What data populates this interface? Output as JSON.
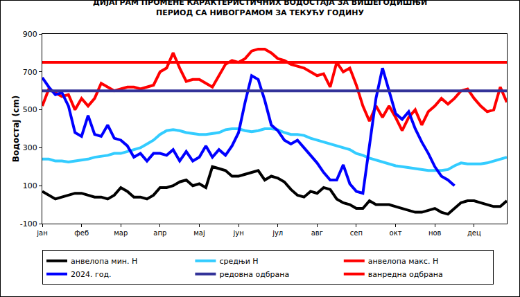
{
  "chart_data": {
    "type": "line",
    "title": "ДИЈАГРАМ ПРОМЕНЕ КАРАКТЕРИСТИЧНИХ ВОДОСТАЈА ЗА ВИШЕГОДИШЊИ\nПЕРИОД СА НИВОГРАМОМ ЗА ТЕКУЋУ ГОДИНУ",
    "y_label": "Водостај (cm)",
    "categories": [
      "јан",
      null,
      null,
      null,
      null,
      null,
      "феб",
      null,
      null,
      null,
      null,
      null,
      "мар",
      null,
      null,
      null,
      null,
      null,
      "апр",
      null,
      null,
      null,
      null,
      null,
      "мај",
      null,
      null,
      null,
      null,
      null,
      "јун",
      null,
      null,
      null,
      null,
      null,
      "јул",
      null,
      null,
      null,
      null,
      null,
      "авг",
      null,
      null,
      null,
      null,
      null,
      "сеп",
      null,
      null,
      null,
      null,
      null,
      "окт",
      null,
      null,
      null,
      null,
      null,
      "нов",
      null,
      null,
      null,
      null,
      null,
      "дец",
      null,
      null,
      null,
      null,
      null
    ],
    "series": [
      {
        "name": "анвелопа мин. Н",
        "color": "#000000",
        "values": [
          70,
          50,
          30,
          40,
          50,
          60,
          60,
          50,
          40,
          40,
          30,
          50,
          90,
          70,
          40,
          40,
          30,
          50,
          90,
          90,
          100,
          120,
          130,
          100,
          110,
          90,
          200,
          190,
          180,
          150,
          150,
          160,
          170,
          180,
          130,
          150,
          140,
          120,
          80,
          50,
          40,
          70,
          60,
          90,
          80,
          30,
          10,
          0,
          -20,
          -20,
          20,
          0,
          0,
          0,
          -10,
          -20,
          -30,
          -40,
          -40,
          -30,
          -20,
          -40,
          -50,
          -20,
          10,
          20,
          20,
          10,
          0,
          -10,
          -10,
          20
        ]
      },
      {
        "name": "средњи Н",
        "color": "#33ccff",
        "values": [
          240,
          240,
          230,
          230,
          225,
          230,
          235,
          240,
          250,
          255,
          260,
          270,
          270,
          280,
          290,
          300,
          320,
          340,
          370,
          390,
          395,
          390,
          380,
          375,
          370,
          370,
          375,
          380,
          395,
          400,
          400,
          390,
          385,
          390,
          400,
          400,
          395,
          380,
          370,
          370,
          365,
          350,
          340,
          330,
          320,
          310,
          300,
          290,
          270,
          260,
          245,
          235,
          225,
          215,
          205,
          200,
          195,
          190,
          185,
          180,
          180,
          180,
          185,
          205,
          220,
          215,
          215,
          215,
          220,
          230,
          240,
          250
        ]
      },
      {
        "name": "анвелопа макс. Н",
        "color": "#ff0000",
        "values": [
          520,
          610,
          590,
          570,
          580,
          500,
          560,
          520,
          560,
          640,
          620,
          600,
          610,
          620,
          620,
          610,
          620,
          630,
          700,
          720,
          800,
          720,
          650,
          660,
          660,
          640,
          620,
          680,
          740,
          760,
          750,
          770,
          810,
          820,
          820,
          800,
          770,
          760,
          740,
          730,
          720,
          700,
          680,
          690,
          620,
          750,
          700,
          720,
          630,
          520,
          440,
          520,
          460,
          520,
          460,
          390,
          460,
          500,
          420,
          490,
          520,
          560,
          530,
          560,
          600,
          610,
          560,
          520,
          490,
          500,
          620,
          540
        ]
      },
      {
        "name": "2024. год.",
        "color": "#0000ff",
        "values": [
          670,
          620,
          580,
          590,
          520,
          380,
          360,
          470,
          370,
          360,
          420,
          350,
          340,
          310,
          250,
          270,
          230,
          270,
          270,
          260,
          290,
          230,
          280,
          230,
          250,
          310,
          250,
          290,
          260,
          310,
          380,
          540,
          680,
          660,
          550,
          420,
          390,
          340,
          320,
          340,
          300,
          260,
          220,
          170,
          130,
          130,
          210,
          110,
          70,
          60,
          300,
          560,
          720,
          600,
          480,
          450,
          490,
          400,
          330,
          270,
          200,
          150,
          130,
          100,
          null,
          null,
          null,
          null,
          null,
          null,
          null,
          null
        ]
      },
      {
        "name": "редовна одбрана",
        "color": "#333399",
        "values": [
          600,
          600,
          600,
          600,
          600,
          600,
          600,
          600,
          600,
          600,
          600,
          600,
          600,
          600,
          600,
          600,
          600,
          600,
          600,
          600,
          600,
          600,
          600,
          600,
          600,
          600,
          600,
          600,
          600,
          600,
          600,
          600,
          600,
          600,
          600,
          600,
          600,
          600,
          600,
          600,
          600,
          600,
          600,
          600,
          600,
          600,
          600,
          600,
          600,
          600,
          600,
          600,
          600,
          600,
          600,
          600,
          600,
          600,
          600,
          600,
          600,
          600,
          600,
          600,
          600,
          600,
          600,
          600,
          600,
          600,
          600,
          600
        ]
      },
      {
        "name": "ванредна одбрана",
        "color": "#ff0000",
        "values": [
          750,
          750,
          750,
          750,
          750,
          750,
          750,
          750,
          750,
          750,
          750,
          750,
          750,
          750,
          750,
          750,
          750,
          750,
          750,
          750,
          750,
          750,
          750,
          750,
          750,
          750,
          750,
          750,
          750,
          750,
          750,
          750,
          750,
          750,
          750,
          750,
          750,
          750,
          750,
          750,
          750,
          750,
          750,
          750,
          750,
          750,
          750,
          750,
          750,
          750,
          750,
          750,
          750,
          750,
          750,
          750,
          750,
          750,
          750,
          750,
          750,
          750,
          750,
          750,
          750,
          750,
          750,
          750,
          750,
          750,
          750,
          750
        ]
      }
    ],
    "ylim": [
      -100,
      900
    ],
    "yticks": [
      -100,
      100,
      300,
      500,
      700,
      900
    ],
    "grid": false,
    "legend": "bottom"
  }
}
